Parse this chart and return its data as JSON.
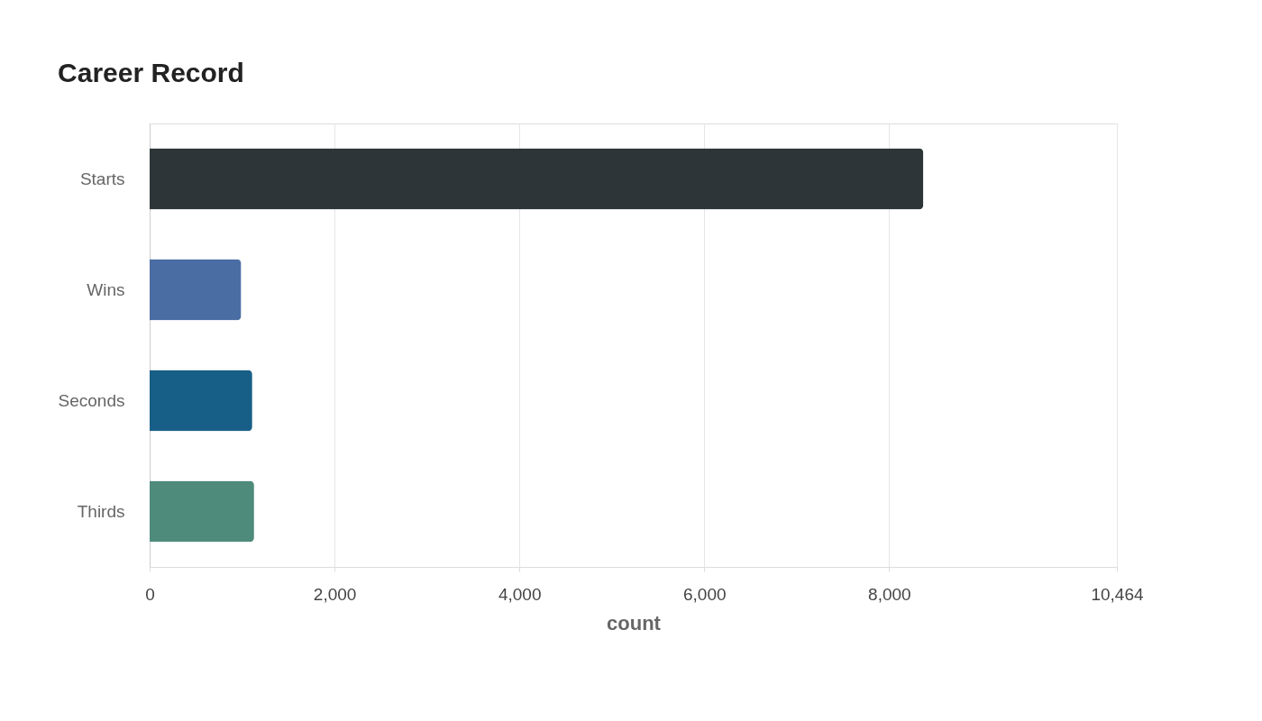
{
  "chart_data": {
    "type": "bar",
    "orientation": "horizontal",
    "title": "Career Record",
    "xlabel": "count",
    "categories": [
      "Starts",
      "Wins",
      "Seconds",
      "Thirds"
    ],
    "values": [
      8370,
      990,
      1110,
      1130
    ],
    "colors": [
      "#2e3538",
      "#4a6da3",
      "#185f87",
      "#4e8b7b"
    ],
    "xlim": [
      0,
      10464
    ],
    "xticks": [
      0,
      {
        "value": 2000,
        "label": "2,000"
      },
      {
        "value": 4000,
        "label": "4,000"
      },
      {
        "value": 6000,
        "label": "6,000"
      },
      {
        "value": 8000,
        "label": "8,000"
      },
      {
        "value": 10464,
        "label": "10,464"
      }
    ],
    "grid": "x"
  }
}
